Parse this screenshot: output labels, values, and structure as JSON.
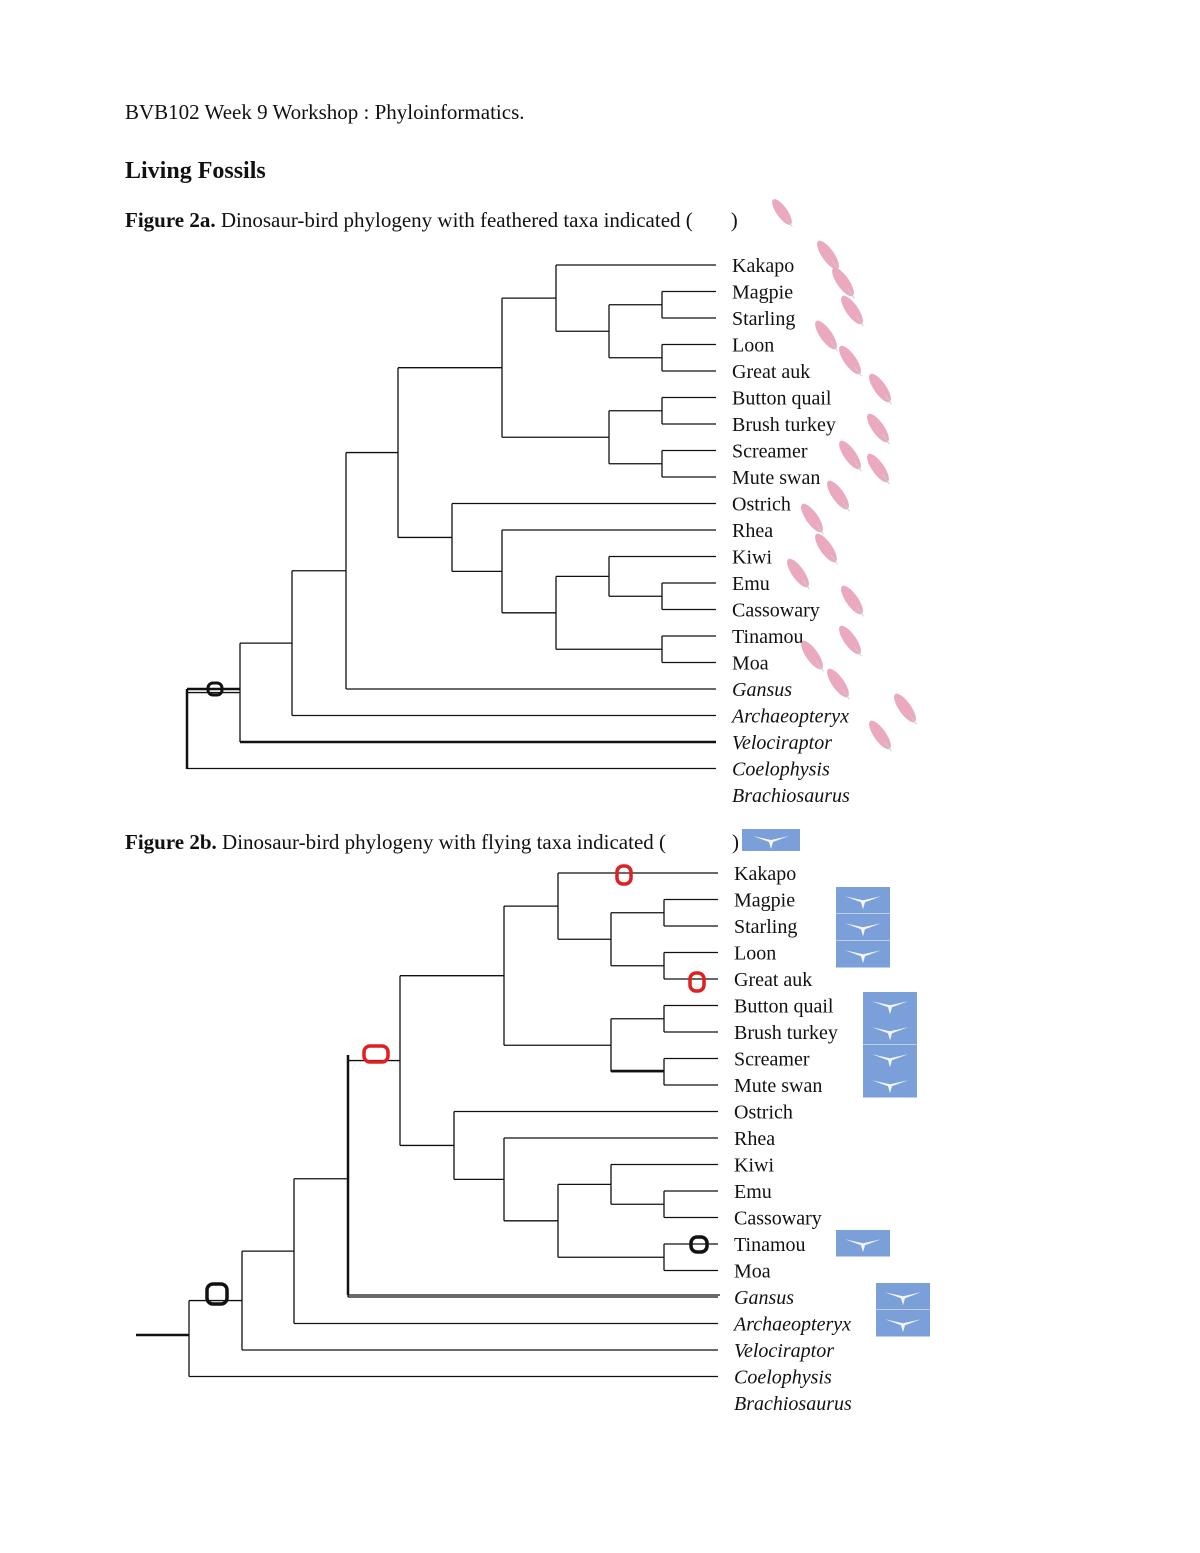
{
  "header": "BVB102 Week 9 Workshop : Phyloinformatics.",
  "section_title": "Living Fossils",
  "figure_2a": {
    "label": "Figure 2a.",
    "caption": "Dinosaur-bird phylogeny with feathered taxa indicated (",
    "caption_end": ")",
    "legend_icon": "feather-icon",
    "feather_color": "#e8a0b8",
    "feathered_taxa": [
      "Kakapo",
      "Magpie",
      "Starling",
      "Loon",
      "Great auk",
      "Button quail",
      "Brush turkey",
      "Screamer",
      "Mute swan",
      "Ostrich",
      "Rhea",
      "Kiwi",
      "Emu",
      "Cassowary",
      "Tinamou",
      "Moa",
      "Gansus",
      "Archaeopteryx",
      "Velociraptor"
    ]
  },
  "figure_2b": {
    "label": "Figure 2b.",
    "caption": "Dinosaur-bird phylogeny with flying taxa indicated (",
    "caption_end": ")",
    "legend_icon": "flying-bird-icon",
    "bird_tile_color": "#7b9fd8",
    "flying_taxa": [
      "Magpie",
      "Starling",
      "Loon",
      "Button quail",
      "Brush turkey",
      "Screamer",
      "Mute swan",
      "Tinamou",
      "Gansus",
      "Archaeopteryx"
    ],
    "red_markers": [
      "Kakapo branch",
      "Great auk branch",
      "Neornithes stem"
    ],
    "black_markers": [
      "Tinamou branch",
      "Maniraptora node"
    ]
  },
  "tree": {
    "newick": "(((((((Kakapo,((Magpie,Starling),(Loon,Great auk))),((Button quail,Brush turkey),(Screamer,Mute swan))),(Ostrich,(Rhea,((Kiwi,(Emu,Cassowary)),(Tinamou,Moa))))),Gansus),Archaeopteryx),Velociraptor),Coelophysis),Brachiosaurus)",
    "taxa": [
      {
        "name": "Kakapo",
        "fossil": false
      },
      {
        "name": "Magpie",
        "fossil": false
      },
      {
        "name": "Starling",
        "fossil": false
      },
      {
        "name": "Loon",
        "fossil": false
      },
      {
        "name": "Great auk",
        "fossil": false
      },
      {
        "name": "Button quail",
        "fossil": false
      },
      {
        "name": "Brush turkey",
        "fossil": false
      },
      {
        "name": "Screamer",
        "fossil": false
      },
      {
        "name": "Mute swan",
        "fossil": false
      },
      {
        "name": "Ostrich",
        "fossil": false
      },
      {
        "name": "Rhea",
        "fossil": false
      },
      {
        "name": "Kiwi",
        "fossil": false
      },
      {
        "name": "Emu",
        "fossil": false
      },
      {
        "name": "Cassowary",
        "fossil": false
      },
      {
        "name": "Tinamou",
        "fossil": false
      },
      {
        "name": "Moa",
        "fossil": false
      },
      {
        "name": "Gansus",
        "fossil": true
      },
      {
        "name": "Archaeopteryx",
        "fossil": true
      },
      {
        "name": "Velociraptor",
        "fossil": true
      },
      {
        "name": "Coelophysis",
        "fossil": true
      },
      {
        "name": "Brachiosaurus",
        "fossil": true
      }
    ]
  }
}
